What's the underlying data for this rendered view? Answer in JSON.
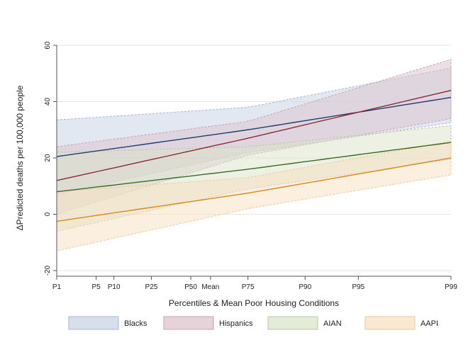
{
  "chart_data": {
    "type": "line",
    "title": "",
    "xlabel": "Percentiles & Mean Poor Housing Conditions",
    "ylabel": "ΔPredicted deaths per 100,000 people",
    "ylim": [
      -20,
      60
    ],
    "yticks": [
      -20,
      0,
      20,
      40,
      60
    ],
    "x_categories": [
      "P1",
      "P5",
      "P10",
      "P25",
      "P50",
      "Mean",
      "P75",
      "P90",
      "P95",
      "P99"
    ],
    "x_positions": [
      0,
      10,
      14.5,
      24,
      34,
      39,
      48.5,
      63,
      76.5,
      100
    ],
    "grid": true,
    "legend_position": "bottom",
    "series": [
      {
        "name": "Blacks",
        "line_color": "#1f3f6e",
        "band_color": "#c5d1e3",
        "band_edge_color": "#a9b6cc",
        "line": [
          [
            0,
            20.5
          ],
          [
            48.5,
            30
          ],
          [
            100,
            41.5
          ]
        ],
        "upper": [
          [
            0,
            33.5
          ],
          [
            48.5,
            38
          ],
          [
            100,
            52
          ]
        ],
        "lower": [
          [
            0,
            7
          ],
          [
            48.5,
            22
          ],
          [
            100,
            32.5
          ]
        ]
      },
      {
        "name": "Hispanics",
        "line_color": "#8c2a35",
        "band_color": "#dcc1cb",
        "band_edge_color": "#c7a3b0",
        "line": [
          [
            0,
            12
          ],
          [
            48.5,
            27
          ],
          [
            100,
            44
          ]
        ],
        "upper": [
          [
            0,
            24
          ],
          [
            48.5,
            33
          ],
          [
            100,
            55
          ]
        ],
        "lower": [
          [
            0,
            0
          ],
          [
            48.5,
            21
          ],
          [
            100,
            34
          ]
        ]
      },
      {
        "name": "AIAN",
        "line_color": "#3f6a23",
        "band_color": "#d9e4c8",
        "band_edge_color": "#b7c8a6",
        "line": [
          [
            0,
            8
          ],
          [
            48.5,
            16
          ],
          [
            100,
            25.5
          ]
        ],
        "upper": [
          [
            0,
            22
          ],
          [
            48.5,
            24
          ],
          [
            100,
            31.5
          ]
        ],
        "lower": [
          [
            0,
            -6
          ],
          [
            48.5,
            9
          ],
          [
            100,
            19.5
          ]
        ]
      },
      {
        "name": "AAPI",
        "line_color": "#d68a1e",
        "band_color": "#f8dfbf",
        "band_edge_color": "#eec898",
        "line": [
          [
            0,
            -2.5
          ],
          [
            48.5,
            7.5
          ],
          [
            100,
            20
          ]
        ],
        "upper": [
          [
            0,
            8
          ],
          [
            48.5,
            13
          ],
          [
            100,
            26
          ]
        ],
        "lower": [
          [
            0,
            -13
          ],
          [
            48.5,
            2
          ],
          [
            100,
            14
          ]
        ]
      }
    ]
  }
}
